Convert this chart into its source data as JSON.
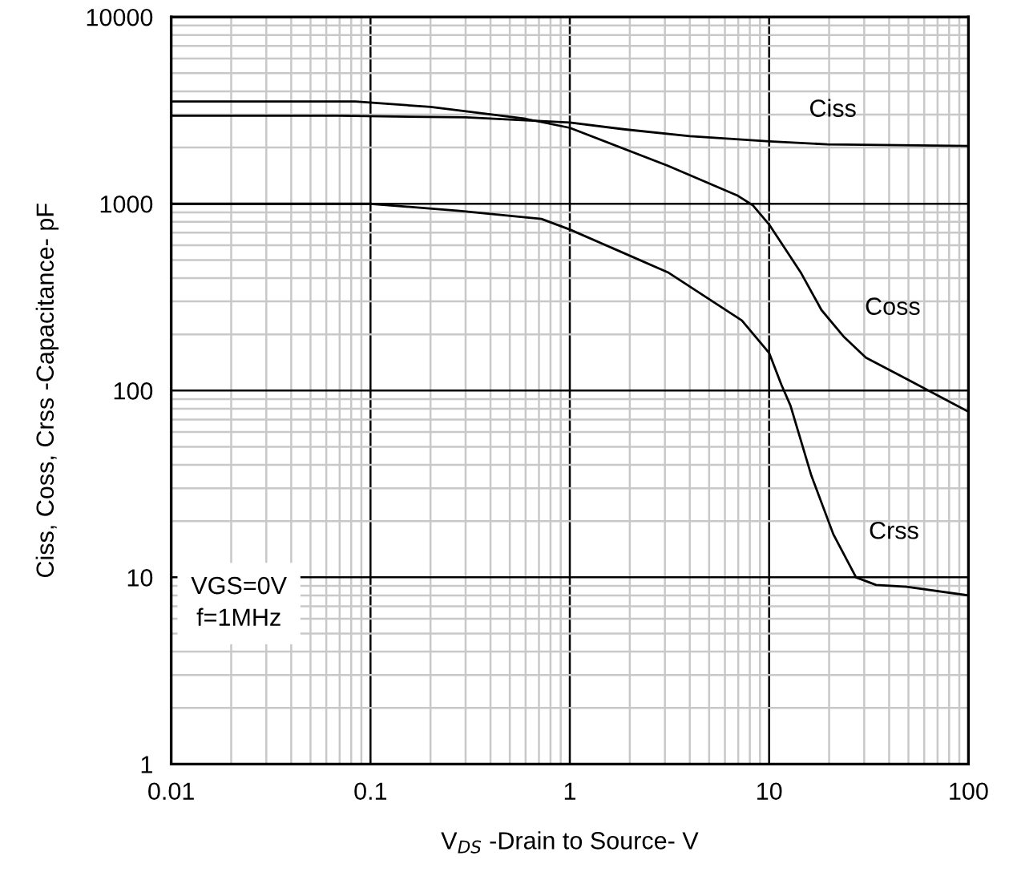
{
  "chart_data": {
    "type": "line",
    "xlabel": "V$_{DS}$ -Drain to Source- V",
    "ylabel": "Ciss, Coss, Crss -Capacitance- pF",
    "log": "xy",
    "grid": true,
    "legend": false,
    "marker": "none",
    "line_style": "solid",
    "xlim": [
      0.01,
      100
    ],
    "xticks": [
      0.01,
      0.1,
      1,
      10,
      100
    ],
    "ylim": [
      1,
      10000
    ],
    "yticks": [
      1,
      10,
      100,
      1000,
      10000
    ],
    "series": [
      {
        "name": "Ciss",
        "color": "#000000",
        "x": [
          0.01,
          0.07,
          0.3,
          1,
          1.9,
          4,
          10,
          19.6,
          100
        ],
        "values": [
          2960,
          2960,
          2900,
          2720,
          2500,
          2300,
          2160,
          2080,
          2040
        ]
      },
      {
        "name": "Coss",
        "color": "#000000",
        "x": [
          0.01,
          0.084,
          0.2,
          0.6,
          1,
          3.1,
          6.9,
          8.3,
          10,
          14.5,
          18.3,
          23.6,
          30.6,
          49.3,
          100
        ],
        "values": [
          3530,
          3530,
          3300,
          2850,
          2550,
          1600,
          1110,
          980,
          775,
          424,
          270,
          195,
          150,
          115,
          77
        ]
      },
      {
        "name": "Crss",
        "color": "#000000",
        "x": [
          0.01,
          0.1,
          0.28,
          0.72,
          1,
          3.1,
          7.3,
          10,
          11.5,
          12.8,
          16.3,
          21,
          27.3,
          34.4,
          49,
          100
        ],
        "values": [
          1000,
          1000,
          915,
          830,
          728,
          430,
          237,
          159,
          108,
          83,
          35,
          17,
          10,
          9.1,
          8.9,
          8.0
        ]
      }
    ],
    "annotations": [
      "VGS=0V\nf=1MHz"
    ]
  }
}
